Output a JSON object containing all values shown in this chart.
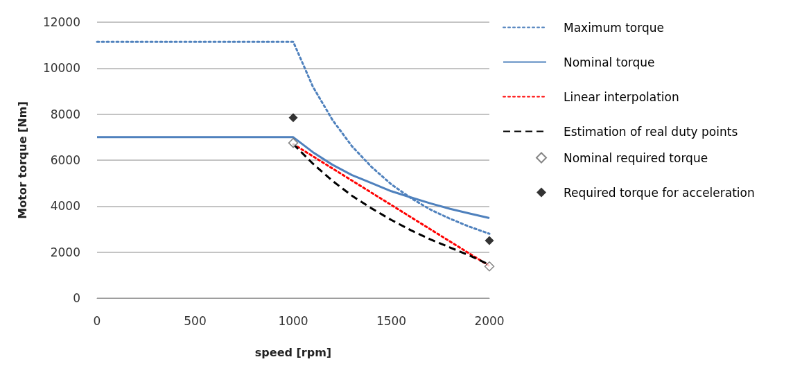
{
  "chart_data": {
    "type": "line",
    "xlabel": "speed [rpm]",
    "ylabel": "Motor torque [Nm]",
    "xlim": [
      0,
      2000
    ],
    "xticks": [
      0,
      500,
      1000,
      1500,
      2000
    ],
    "ylim": [
      0,
      12000
    ],
    "yticks": [
      0,
      2000,
      4000,
      6000,
      8000,
      10000,
      12000
    ],
    "grid": "y",
    "legend": "right",
    "series": [
      {
        "name": "Maximum torque",
        "color": "#4f81bd",
        "line_style": "dotted",
        "marker": "none",
        "x": [
          0,
          1000,
          1100,
          1200,
          1300,
          1400,
          1500,
          1600,
          1700,
          1800,
          1900,
          2000
        ],
        "values": [
          11150,
          11150,
          9200,
          7750,
          6600,
          5700,
          4950,
          4350,
          3850,
          3450,
          3100,
          2800
        ]
      },
      {
        "name": "Nominal torque",
        "color": "#4f81bd",
        "line_style": "solid",
        "marker": "none",
        "x": [
          0,
          1000,
          1100,
          1200,
          1300,
          1400,
          1500,
          1600,
          1700,
          1800,
          1900,
          2000
        ],
        "values": [
          7000,
          7000,
          6350,
          5800,
          5350,
          5000,
          4650,
          4380,
          4120,
          3880,
          3680,
          3480
        ]
      },
      {
        "name": "Linear interpolation",
        "color": "#ff0000",
        "line_style": "dotted",
        "marker": "none",
        "x": [
          1000,
          2000
        ],
        "values": [
          6700,
          1400
        ]
      },
      {
        "name": "Estimation of real duty points",
        "color": "#000000",
        "line_style": "dashed",
        "marker": "none",
        "x": [
          1000,
          1100,
          1200,
          1300,
          1400,
          1500,
          1600,
          1700,
          1800,
          1900,
          2000
        ],
        "values": [
          6700,
          5850,
          5100,
          4450,
          3900,
          3400,
          2950,
          2550,
          2200,
          1850,
          1450
        ]
      },
      {
        "name": "Nominal required torque",
        "type": "scatter",
        "color": "#ffffff",
        "marker": "diamond",
        "x": [
          1000,
          2000
        ],
        "values": [
          6750,
          1380
        ]
      },
      {
        "name": "Required torque for acceleration",
        "type": "scatter",
        "color": "#000000",
        "marker": "diamond",
        "x": [
          1000,
          2000
        ],
        "values": [
          7850,
          2500
        ]
      }
    ]
  }
}
